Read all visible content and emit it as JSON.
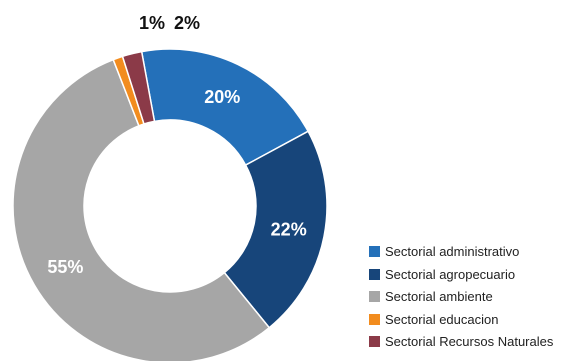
{
  "chart_data": {
    "type": "pie",
    "donut": true,
    "title": "",
    "categories": [
      "Sectorial administrativo",
      "Sectorial agropecuario",
      "Sectorial ambiente",
      "Sectorial educacion",
      "Sectorial Recursos Naturales"
    ],
    "values": [
      20,
      22,
      55,
      1,
      2
    ],
    "labels": [
      "20%",
      "22%",
      "55%",
      "1%",
      "2%"
    ],
    "colors": [
      "#2470b9",
      "#17457a",
      "#a6a6a6",
      "#f28c1e",
      "#8b3a48"
    ],
    "legend_position": "right-bottom"
  }
}
